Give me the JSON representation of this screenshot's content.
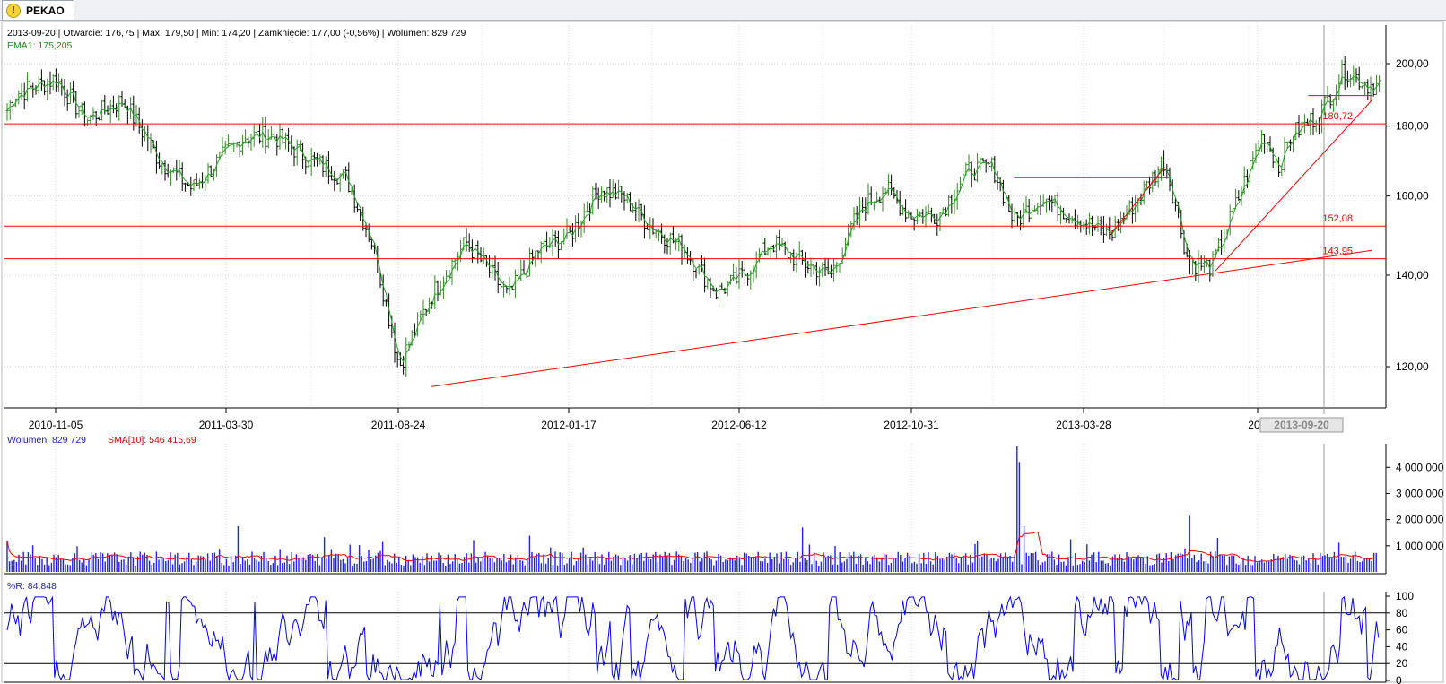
{
  "tab": {
    "title": "PEKAO",
    "icon": "warning-icon"
  },
  "header": {
    "ohlc_text": "2013-09-20 | Otwarcie: 176,75 | Max: 179,50 | Min: 174,20 | Zamknięcie: 177,00 (-0,56%)   | Wolumen: 829 729",
    "ema_text": "EMA1: 175,205"
  },
  "volume_header": {
    "volume_text": "Wolumen: 829 729",
    "sma_text": "SMA[10]: 546 415,69"
  },
  "wr_header": {
    "text": "%R: 84,848"
  },
  "colors": {
    "up": "#2e8b1e",
    "down": "#000000",
    "trend": "#ff0000",
    "volume": "#2020ff",
    "wr": "#0000ff"
  },
  "chart_data": [
    {
      "type": "candlestick",
      "title": "PEKAO",
      "x_ticks": [
        "2010-11-05",
        "2011-03-30",
        "2011-08-24",
        "2012-01-17",
        "2012-06-12",
        "2012-10-31",
        "2013-03-28",
        "2013"
      ],
      "cursor_date": "2013-09-20",
      "y_ticks": [
        "120,00",
        "140,00",
        "160,00",
        "180,00",
        "200,00"
      ],
      "ylim": [
        114,
        208
      ],
      "y_scale": "log",
      "levels": [
        {
          "label": "180,72",
          "value": 180.72
        },
        {
          "label": "152,08",
          "value": 152.08
        },
        {
          "label": "143,95",
          "value": 143.95
        }
      ],
      "price_path": [
        [
          "2010-09-01",
          165
        ],
        [
          "2010-10-01",
          190
        ],
        [
          "2010-11-05",
          195
        ],
        [
          "2010-12-01",
          182
        ],
        [
          "2011-01-01",
          188
        ],
        [
          "2011-02-01",
          170
        ],
        [
          "2011-03-01",
          162
        ],
        [
          "2011-03-30",
          172
        ],
        [
          "2011-04-15",
          177
        ],
        [
          "2011-05-10",
          177
        ],
        [
          "2011-06-10",
          170
        ],
        [
          "2011-07-10",
          165
        ],
        [
          "2011-08-01",
          148
        ],
        [
          "2011-08-24",
          120
        ],
        [
          "2011-09-20",
          135
        ],
        [
          "2011-10-20",
          148
        ],
        [
          "2011-11-25",
          135
        ],
        [
          "2011-12-20",
          146
        ],
        [
          "2012-01-17",
          150
        ],
        [
          "2012-02-10",
          162
        ],
        [
          "2012-03-01",
          160
        ],
        [
          "2012-03-25",
          152
        ],
        [
          "2012-04-20",
          147
        ],
        [
          "2012-05-20",
          136
        ],
        [
          "2012-06-12",
          140
        ],
        [
          "2012-07-05",
          148
        ],
        [
          "2012-08-01",
          143
        ],
        [
          "2012-08-25",
          140
        ],
        [
          "2012-09-20",
          157
        ],
        [
          "2012-10-10",
          162
        ],
        [
          "2012-10-31",
          155
        ],
        [
          "2012-11-25",
          155
        ],
        [
          "2012-12-20",
          167
        ],
        [
          "2013-01-10",
          168
        ],
        [
          "2013-01-28",
          153
        ],
        [
          "2013-02-20",
          160
        ],
        [
          "2013-03-28",
          153
        ],
        [
          "2013-04-20",
          150
        ],
        [
          "2013-05-15",
          160
        ],
        [
          "2013-06-05",
          170
        ],
        [
          "2013-06-25",
          143
        ],
        [
          "2013-07-15",
          142
        ],
        [
          "2013-08-05",
          158
        ],
        [
          "2013-08-28",
          178
        ],
        [
          "2013-09-10",
          168
        ],
        [
          "2013-09-20",
          177
        ],
        [
          "2013-10-15",
          184
        ],
        [
          "2013-11-05",
          198
        ],
        [
          "2013-11-25",
          193
        ]
      ]
    },
    {
      "type": "bar",
      "series": [
        {
          "name": "Wolumen"
        },
        {
          "name": "SMA[10]"
        }
      ],
      "y_ticks": [
        "1 000 000",
        "2 000 000",
        "3 000 000",
        "4 000 000"
      ],
      "ylim": [
        0,
        4900000
      ],
      "typical_volume": 600000,
      "spikes": [
        [
          "2011-04-10",
          1750000
        ],
        [
          "2011-08-10",
          1150000
        ],
        [
          "2012-08-01",
          1700000
        ],
        [
          "2012-12-28",
          1200000
        ],
        [
          "2013-01-31",
          4800000
        ],
        [
          "2013-02-01",
          4200000
        ],
        [
          "2013-02-06",
          1750000
        ],
        [
          "2013-06-27",
          2150000
        ],
        [
          "2013-07-20",
          1300000
        ]
      ]
    },
    {
      "type": "line",
      "series": [
        {
          "name": "%R"
        }
      ],
      "y_ticks": [
        "0",
        "20",
        "40",
        "60",
        "80",
        "100"
      ],
      "ylim": [
        0,
        100
      ],
      "reference_lines": [
        20,
        80
      ]
    }
  ]
}
